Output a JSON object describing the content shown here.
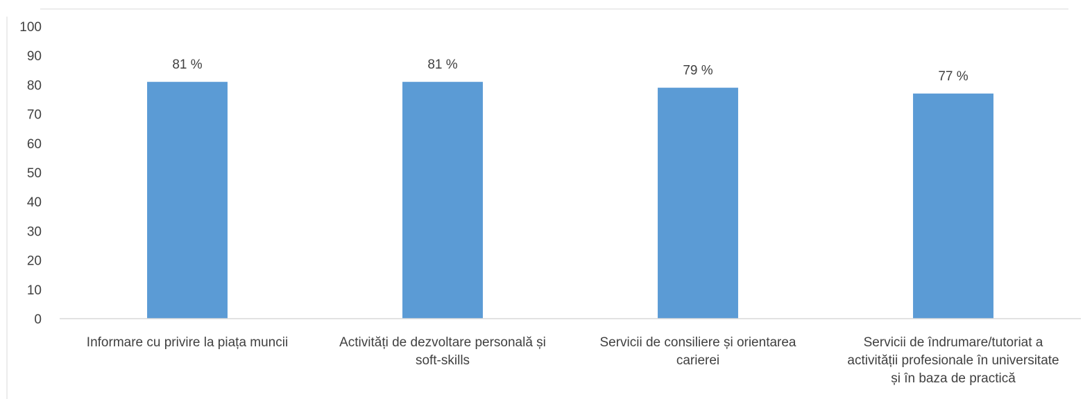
{
  "chart_data": {
    "type": "bar",
    "categories": [
      [
        "Informare cu privire la piața muncii"
      ],
      [
        "Activități de dezvoltare personală și",
        "soft-skills"
      ],
      [
        "Servicii de consiliere și orientarea",
        "carierei"
      ],
      [
        "Servicii de îndrumare/tutoriat a",
        "activității profesionale în universitate",
        "și în baza de practică"
      ]
    ],
    "values": [
      81,
      81,
      79,
      77
    ],
    "data_labels": [
      "81 %",
      "81 %",
      "79 %",
      "77 %"
    ],
    "y_ticks": [
      "0",
      "10",
      "20",
      "30",
      "40",
      "50",
      "60",
      "70",
      "80",
      "90",
      "100"
    ],
    "ylim": [
      0,
      100
    ],
    "grid": false,
    "bar_color": "#5b9bd5",
    "axis_color": "#d9d9d9",
    "text_color": "#404040"
  }
}
